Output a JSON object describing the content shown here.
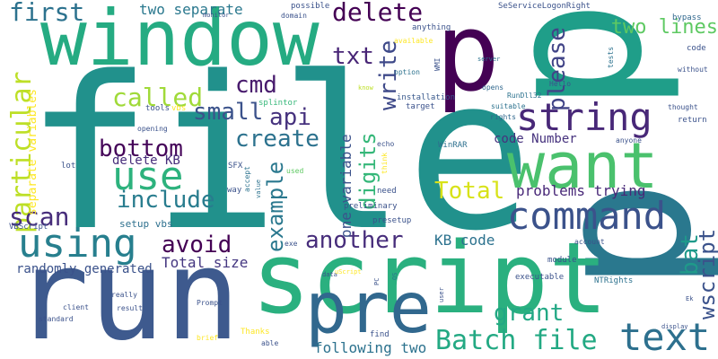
{
  "words": [
    {
      "text": "file",
      "color": "#21918c"
    },
    {
      "text": "p",
      "color": "#440154"
    },
    {
      "text": "p",
      "color": "#1f9e89"
    },
    {
      "text": "p",
      "color": "#2a788e"
    },
    {
      "text": "window",
      "color": "#25ab82"
    },
    {
      "text": "script",
      "color": "#2ab07f"
    },
    {
      "text": "run",
      "color": "#3e5a8e"
    },
    {
      "text": "pre",
      "color": "#31688e"
    },
    {
      "text": "want",
      "color": "#4ac16d"
    },
    {
      "text": "command",
      "color": "#3b528b"
    },
    {
      "text": "string",
      "color": "#482878"
    },
    {
      "text": "use",
      "color": "#2db27d"
    },
    {
      "text": "using",
      "color": "#277f8e"
    },
    {
      "text": "text",
      "color": "#2d708e"
    },
    {
      "text": "Batch file",
      "color": "#23a983"
    },
    {
      "text": "first",
      "color": "#2c728e"
    },
    {
      "text": "delete",
      "color": "#440154"
    },
    {
      "text": "particular",
      "color": "#bddf26"
    },
    {
      "text": "called",
      "color": "#a0da39"
    },
    {
      "text": "small",
      "color": "#3b528b"
    },
    {
      "text": "api",
      "color": "#46327e"
    },
    {
      "text": "create",
      "color": "#2c728e"
    },
    {
      "text": "bottom",
      "color": "#450559"
    },
    {
      "text": "include",
      "color": "#287c8e"
    },
    {
      "text": "scan",
      "color": "#472d7b"
    },
    {
      "text": "avoid",
      "color": "#440154"
    },
    {
      "text": "another",
      "color": "#472d7b"
    },
    {
      "text": "example",
      "color": "#2a788e"
    },
    {
      "text": "digits",
      "color": "#35b779"
    },
    {
      "text": "grant",
      "color": "#22a884"
    },
    {
      "text": "cmd",
      "color": "#481b6d"
    },
    {
      "text": "txt",
      "color": "#482576"
    },
    {
      "text": "write",
      "color": "#3e4989"
    },
    {
      "text": "please",
      "color": "#414487"
    },
    {
      "text": "two lines",
      "color": "#5ec962"
    },
    {
      "text": "two separate",
      "color": "#2a788e"
    },
    {
      "text": "Total",
      "color": "#d8e219"
    },
    {
      "text": "bat",
      "color": "#1f9a8a"
    },
    {
      "text": "wscript",
      "color": "#3b528b"
    },
    {
      "text": "KB code",
      "color": "#2c728e"
    },
    {
      "text": "Total size",
      "color": "#453781"
    },
    {
      "text": "following two",
      "color": "#2c728e"
    },
    {
      "text": "randomly generated",
      "color": "#3b528b"
    },
    {
      "text": "problems trying",
      "color": "#482878"
    },
    {
      "text": "code Number",
      "color": "#46327e"
    },
    {
      "text": "delete KB",
      "color": "#472d7b"
    },
    {
      "text": "separate variables",
      "color": "#fde725"
    },
    {
      "text": "one variable",
      "color": "#3b528b"
    },
    {
      "text": "setup vbs",
      "color": "#2d708e"
    },
    {
      "text": "SeServiceLogonRight",
      "color": "#3b528b"
    },
    {
      "text": "WinRAR",
      "color": "#2d708e"
    },
    {
      "text": "RunDll32",
      "color": "#2c728e"
    },
    {
      "text": "Hello",
      "color": "#3b528b"
    },
    {
      "text": "opens",
      "color": "#31688e"
    },
    {
      "text": "installation",
      "color": "#38588c"
    },
    {
      "text": "target",
      "color": "#3b528b"
    },
    {
      "text": "suitable",
      "color": "#2c728e"
    },
    {
      "text": "rights",
      "color": "#31688e"
    },
    {
      "text": "tools",
      "color": "#3b528b"
    },
    {
      "text": "vbs",
      "color": "#fde725"
    },
    {
      "text": "splintor",
      "color": "#35b779"
    },
    {
      "text": "opening",
      "color": "#3b528b"
    },
    {
      "text": "echo",
      "color": "#3b528b"
    },
    {
      "text": "anything",
      "color": "#3b528b"
    },
    {
      "text": "possible",
      "color": "#3b528b"
    },
    {
      "text": "domain",
      "color": "#3b528b"
    },
    {
      "text": "monitor",
      "color": "#3b528b"
    },
    {
      "text": "available",
      "color": "#fde725"
    },
    {
      "text": "option",
      "color": "#2c728e"
    },
    {
      "text": "WMI",
      "color": "#3b528b"
    },
    {
      "text": "know",
      "color": "#bddf26"
    },
    {
      "text": "server",
      "color": "#2c728e"
    },
    {
      "text": "tests",
      "color": "#2c728e"
    },
    {
      "text": "bypass",
      "color": "#31688e"
    },
    {
      "text": "code",
      "color": "#3b528b"
    },
    {
      "text": "without",
      "color": "#3b528b"
    },
    {
      "text": "thought",
      "color": "#3b528b"
    },
    {
      "text": "return",
      "color": "#3b528b"
    },
    {
      "text": "anyone",
      "color": "#3b528b"
    },
    {
      "text": "SFX",
      "color": "#3b528b"
    },
    {
      "text": "accept",
      "color": "#2c728e"
    },
    {
      "text": "used",
      "color": "#5ec962"
    },
    {
      "text": "think",
      "color": "#fde725"
    },
    {
      "text": "way",
      "color": "#3b528b"
    },
    {
      "text": "value",
      "color": "#2c728e"
    },
    {
      "text": "need",
      "color": "#3b528b"
    },
    {
      "text": "lot",
      "color": "#3b528b"
    },
    {
      "text": "preliminary",
      "color": "#3b528b"
    },
    {
      "text": "presetup",
      "color": "#3b528b"
    },
    {
      "text": "VBScript",
      "color": "#3b528b"
    },
    {
      "text": "exe",
      "color": "#3b528b"
    },
    {
      "text": "account",
      "color": "#3b528b"
    },
    {
      "text": "module",
      "color": "#3b528b"
    },
    {
      "text": "executable",
      "color": "#3b528b"
    },
    {
      "text": "NTRights",
      "color": "#2c728e"
    },
    {
      "text": "data",
      "color": "#3b528b"
    },
    {
      "text": "uScript",
      "color": "#fde725"
    },
    {
      "text": "PC",
      "color": "#3b528b"
    },
    {
      "text": "OS",
      "color": "#2c728e"
    },
    {
      "text": "user",
      "color": "#3b528b"
    },
    {
      "text": "really",
      "color": "#3b528b"
    },
    {
      "text": "client",
      "color": "#3b528b"
    },
    {
      "text": "result",
      "color": "#3b528b"
    },
    {
      "text": "Prompt",
      "color": "#3b528b"
    },
    {
      "text": "standard",
      "color": "#3b528b"
    },
    {
      "text": "Thanks",
      "color": "#fde725"
    },
    {
      "text": "brief",
      "color": "#fde725"
    },
    {
      "text": "able",
      "color": "#3b528b"
    },
    {
      "text": "find",
      "color": "#3b528b"
    },
    {
      "text": "display",
      "color": "#3b528b"
    },
    {
      "text": "Ek",
      "color": "#3b528b"
    }
  ]
}
